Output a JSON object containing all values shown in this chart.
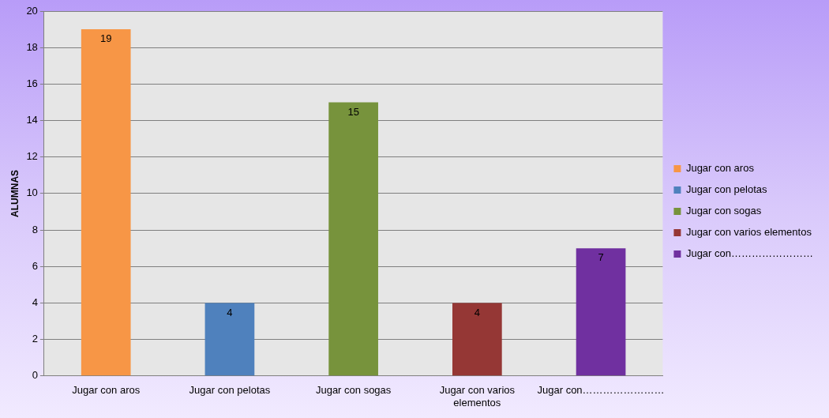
{
  "chart_data": {
    "type": "bar",
    "ylabel": "ALUMNAS",
    "categories": [
      "Jugar con aros",
      "Jugar con pelotas",
      "Jugar con sogas",
      "Jugar con varios elementos",
      "Jugar con……………………"
    ],
    "series": [
      {
        "name": "Jugar con aros",
        "color": "#f79646",
        "values": [
          19,
          null,
          null,
          null,
          null
        ]
      },
      {
        "name": "Jugar con pelotas",
        "color": "#4f81bd",
        "values": [
          null,
          4,
          null,
          null,
          null
        ]
      },
      {
        "name": "Jugar con sogas",
        "color": "#77933c",
        "values": [
          null,
          null,
          15,
          null,
          null
        ]
      },
      {
        "name": "Jugar con varios elementos",
        "color": "#953735",
        "values": [
          null,
          null,
          null,
          4,
          null
        ]
      },
      {
        "name": "Jugar con……………………",
        "color": "#7030a0",
        "values": [
          null,
          null,
          null,
          null,
          7
        ]
      }
    ],
    "ylim": [
      0,
      20
    ],
    "yticks": [
      0,
      2,
      4,
      6,
      8,
      10,
      12,
      14,
      16,
      18,
      20
    ],
    "grid": "y",
    "legend": "right",
    "data_labels": true
  }
}
